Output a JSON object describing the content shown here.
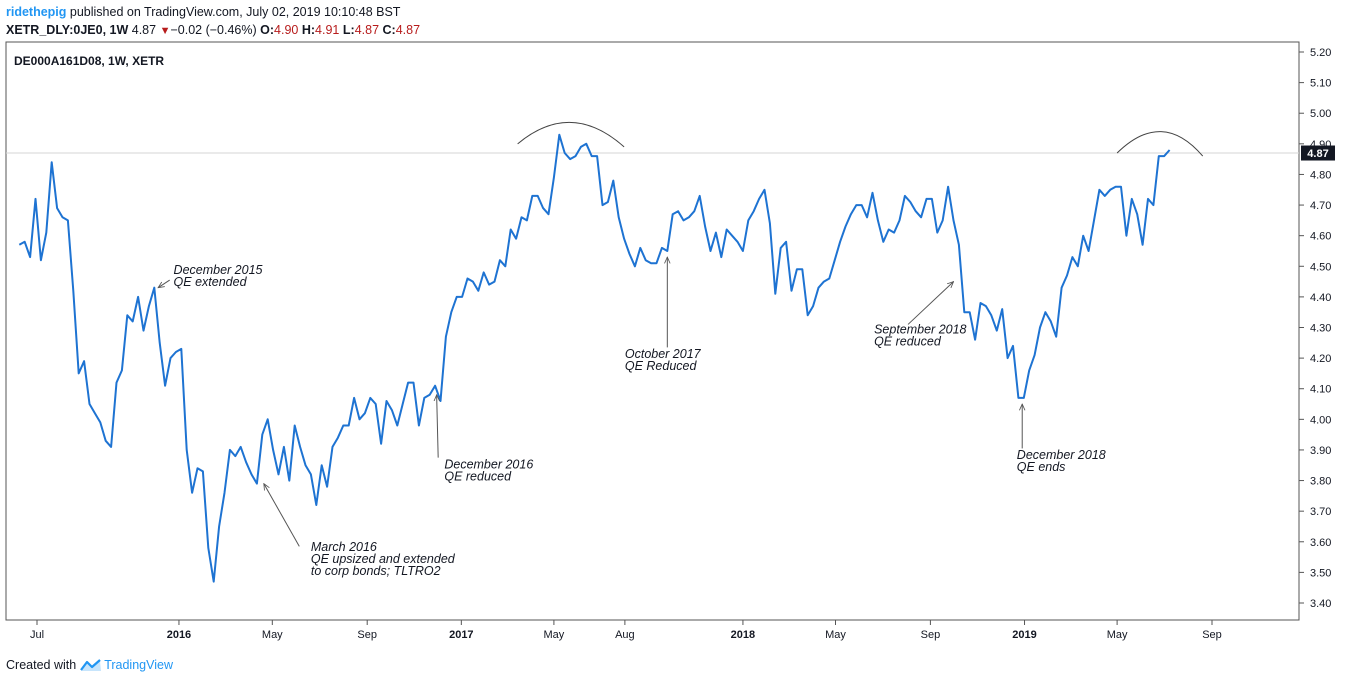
{
  "header": {
    "user": "ridethepig",
    "published_text": " published on TradingView.com, July 02, 2019 10:10:48 BST",
    "symbol": "XETR_DLY:0JE0, 1W",
    "last": "4.87",
    "change": "−0.02 (−0.46%)",
    "o_label": "O:",
    "o_value": "4.90",
    "h_label": "H:",
    "h_value": "4.91",
    "l_label": "L:",
    "l_value": "4.87",
    "c_label": "C:",
    "c_value": "4.87"
  },
  "footer": {
    "created_with": "Created with",
    "brand": "TradingView"
  },
  "chart_data": {
    "type": "line",
    "title": "DE000A161D08, 1W, XETR",
    "xlabel": "",
    "ylabel": "",
    "ylim": [
      3.35,
      5.23
    ],
    "y_ticks": [
      "5.20",
      "5.10",
      "5.00",
      "4.90",
      "4.80",
      "4.70",
      "4.60",
      "4.50",
      "4.40",
      "4.30",
      "4.20",
      "4.10",
      "4.00",
      "3.90",
      "3.80",
      "3.70",
      "3.60",
      "3.50",
      "3.40"
    ],
    "x_ticks": [
      {
        "label": "Jul",
        "date": "2015-07-01",
        "bold": false
      },
      {
        "label": "2016",
        "date": "2016-01-01",
        "bold": true
      },
      {
        "label": "May",
        "date": "2016-05-01",
        "bold": false
      },
      {
        "label": "Sep",
        "date": "2016-09-01",
        "bold": false
      },
      {
        "label": "2017",
        "date": "2017-01-01",
        "bold": true
      },
      {
        "label": "May",
        "date": "2017-05-01",
        "bold": false
      },
      {
        "label": "Aug",
        "date": "2017-08-01",
        "bold": false
      },
      {
        "label": "2018",
        "date": "2018-01-01",
        "bold": true
      },
      {
        "label": "May",
        "date": "2018-05-01",
        "bold": false
      },
      {
        "label": "Sep",
        "date": "2018-09-01",
        "bold": false
      },
      {
        "label": "2019",
        "date": "2019-01-01",
        "bold": true
      },
      {
        "label": "May",
        "date": "2019-05-01",
        "bold": false
      },
      {
        "label": "Sep",
        "date": "2019-09-01",
        "bold": false
      }
    ],
    "current_price": "4.87",
    "grid": false,
    "line_color": "#1e73d2",
    "series": [
      {
        "values": [
          [
            "2015-06-08",
            4.57
          ],
          [
            "2015-06-15",
            4.58
          ],
          [
            "2015-06-22",
            4.53
          ],
          [
            "2015-06-29",
            4.72
          ],
          [
            "2015-07-06",
            4.52
          ],
          [
            "2015-07-13",
            4.61
          ],
          [
            "2015-07-20",
            4.84
          ],
          [
            "2015-07-27",
            4.69
          ],
          [
            "2015-08-03",
            4.66
          ],
          [
            "2015-08-10",
            4.65
          ],
          [
            "2015-08-17",
            4.42
          ],
          [
            "2015-08-24",
            4.15
          ],
          [
            "2015-08-31",
            4.19
          ],
          [
            "2015-09-07",
            4.05
          ],
          [
            "2015-09-14",
            4.02
          ],
          [
            "2015-09-21",
            3.99
          ],
          [
            "2015-09-28",
            3.93
          ],
          [
            "2015-10-05",
            3.91
          ],
          [
            "2015-10-12",
            4.12
          ],
          [
            "2015-10-19",
            4.16
          ],
          [
            "2015-10-26",
            4.34
          ],
          [
            "2015-11-02",
            4.32
          ],
          [
            "2015-11-09",
            4.4
          ],
          [
            "2015-11-16",
            4.29
          ],
          [
            "2015-11-23",
            4.37
          ],
          [
            "2015-11-30",
            4.43
          ],
          [
            "2015-12-07",
            4.25
          ],
          [
            "2015-12-14",
            4.11
          ],
          [
            "2015-12-21",
            4.2
          ],
          [
            "2015-12-28",
            4.22
          ],
          [
            "2016-01-04",
            4.23
          ],
          [
            "2016-01-11",
            3.9
          ],
          [
            "2016-01-18",
            3.76
          ],
          [
            "2016-01-25",
            3.84
          ],
          [
            "2016-02-01",
            3.83
          ],
          [
            "2016-02-08",
            3.58
          ],
          [
            "2016-02-15",
            3.47
          ],
          [
            "2016-02-22",
            3.65
          ],
          [
            "2016-02-29",
            3.76
          ],
          [
            "2016-03-07",
            3.9
          ],
          [
            "2016-03-14",
            3.88
          ],
          [
            "2016-03-21",
            3.91
          ],
          [
            "2016-03-28",
            3.86
          ],
          [
            "2016-04-04",
            3.82
          ],
          [
            "2016-04-11",
            3.79
          ],
          [
            "2016-04-18",
            3.95
          ],
          [
            "2016-04-25",
            4.0
          ],
          [
            "2016-05-02",
            3.9
          ],
          [
            "2016-05-09",
            3.82
          ],
          [
            "2016-05-16",
            3.91
          ],
          [
            "2016-05-23",
            3.8
          ],
          [
            "2016-05-30",
            3.98
          ],
          [
            "2016-06-06",
            3.91
          ],
          [
            "2016-06-13",
            3.85
          ],
          [
            "2016-06-20",
            3.82
          ],
          [
            "2016-06-27",
            3.72
          ],
          [
            "2016-07-04",
            3.85
          ],
          [
            "2016-07-11",
            3.78
          ],
          [
            "2016-07-18",
            3.91
          ],
          [
            "2016-07-25",
            3.94
          ],
          [
            "2016-08-01",
            3.98
          ],
          [
            "2016-08-08",
            3.98
          ],
          [
            "2016-08-15",
            4.07
          ],
          [
            "2016-08-22",
            4.0
          ],
          [
            "2016-08-29",
            4.02
          ],
          [
            "2016-09-05",
            4.07
          ],
          [
            "2016-09-12",
            4.05
          ],
          [
            "2016-09-19",
            3.92
          ],
          [
            "2016-09-26",
            4.06
          ],
          [
            "2016-10-03",
            4.03
          ],
          [
            "2016-10-10",
            3.98
          ],
          [
            "2016-10-17",
            4.05
          ],
          [
            "2016-10-24",
            4.12
          ],
          [
            "2016-10-31",
            4.12
          ],
          [
            "2016-11-07",
            3.98
          ],
          [
            "2016-11-14",
            4.07
          ],
          [
            "2016-11-21",
            4.08
          ],
          [
            "2016-11-28",
            4.11
          ],
          [
            "2016-12-05",
            4.06
          ],
          [
            "2016-12-12",
            4.27
          ],
          [
            "2016-12-19",
            4.35
          ],
          [
            "2016-12-26",
            4.4
          ],
          [
            "2017-01-02",
            4.4
          ],
          [
            "2017-01-09",
            4.46
          ],
          [
            "2017-01-16",
            4.45
          ],
          [
            "2017-01-23",
            4.42
          ],
          [
            "2017-01-30",
            4.48
          ],
          [
            "2017-02-06",
            4.44
          ],
          [
            "2017-02-13",
            4.45
          ],
          [
            "2017-02-20",
            4.52
          ],
          [
            "2017-02-27",
            4.5
          ],
          [
            "2017-03-06",
            4.62
          ],
          [
            "2017-03-13",
            4.59
          ],
          [
            "2017-03-20",
            4.66
          ],
          [
            "2017-03-27",
            4.65
          ],
          [
            "2017-04-03",
            4.73
          ],
          [
            "2017-04-10",
            4.73
          ],
          [
            "2017-04-17",
            4.69
          ],
          [
            "2017-04-24",
            4.67
          ],
          [
            "2017-05-01",
            4.79
          ],
          [
            "2017-05-08",
            4.93
          ],
          [
            "2017-05-15",
            4.87
          ],
          [
            "2017-05-22",
            4.85
          ],
          [
            "2017-05-29",
            4.86
          ],
          [
            "2017-06-05",
            4.89
          ],
          [
            "2017-06-12",
            4.9
          ],
          [
            "2017-06-19",
            4.86
          ],
          [
            "2017-06-26",
            4.86
          ],
          [
            "2017-07-03",
            4.7
          ],
          [
            "2017-07-10",
            4.71
          ],
          [
            "2017-07-17",
            4.78
          ],
          [
            "2017-07-24",
            4.66
          ],
          [
            "2017-07-31",
            4.59
          ],
          [
            "2017-08-07",
            4.54
          ],
          [
            "2017-08-14",
            4.5
          ],
          [
            "2017-08-21",
            4.56
          ],
          [
            "2017-08-28",
            4.52
          ],
          [
            "2017-09-04",
            4.51
          ],
          [
            "2017-09-11",
            4.51
          ],
          [
            "2017-09-18",
            4.56
          ],
          [
            "2017-09-25",
            4.55
          ],
          [
            "2017-10-02",
            4.67
          ],
          [
            "2017-10-09",
            4.68
          ],
          [
            "2017-10-16",
            4.65
          ],
          [
            "2017-10-23",
            4.66
          ],
          [
            "2017-10-30",
            4.68
          ],
          [
            "2017-11-06",
            4.73
          ],
          [
            "2017-11-13",
            4.63
          ],
          [
            "2017-11-20",
            4.55
          ],
          [
            "2017-11-27",
            4.61
          ],
          [
            "2017-12-04",
            4.53
          ],
          [
            "2017-12-11",
            4.62
          ],
          [
            "2017-12-18",
            4.6
          ],
          [
            "2017-12-25",
            4.58
          ],
          [
            "2018-01-01",
            4.55
          ],
          [
            "2018-01-08",
            4.65
          ],
          [
            "2018-01-15",
            4.68
          ],
          [
            "2018-01-22",
            4.72
          ],
          [
            "2018-01-29",
            4.75
          ],
          [
            "2018-02-05",
            4.64
          ],
          [
            "2018-02-12",
            4.41
          ],
          [
            "2018-02-19",
            4.56
          ],
          [
            "2018-02-26",
            4.58
          ],
          [
            "2018-03-05",
            4.42
          ],
          [
            "2018-03-12",
            4.49
          ],
          [
            "2018-03-19",
            4.49
          ],
          [
            "2018-03-26",
            4.34
          ],
          [
            "2018-04-02",
            4.37
          ],
          [
            "2018-04-09",
            4.43
          ],
          [
            "2018-04-16",
            4.45
          ],
          [
            "2018-04-23",
            4.46
          ],
          [
            "2018-04-30",
            4.52
          ],
          [
            "2018-05-07",
            4.58
          ],
          [
            "2018-05-14",
            4.63
          ],
          [
            "2018-05-21",
            4.67
          ],
          [
            "2018-05-28",
            4.7
          ],
          [
            "2018-06-04",
            4.7
          ],
          [
            "2018-06-11",
            4.66
          ],
          [
            "2018-06-18",
            4.74
          ],
          [
            "2018-06-25",
            4.65
          ],
          [
            "2018-07-02",
            4.58
          ],
          [
            "2018-07-09",
            4.62
          ],
          [
            "2018-07-16",
            4.61
          ],
          [
            "2018-07-23",
            4.65
          ],
          [
            "2018-07-30",
            4.73
          ],
          [
            "2018-08-06",
            4.71
          ],
          [
            "2018-08-13",
            4.68
          ],
          [
            "2018-08-20",
            4.66
          ],
          [
            "2018-08-27",
            4.72
          ],
          [
            "2018-09-03",
            4.72
          ],
          [
            "2018-09-10",
            4.61
          ],
          [
            "2018-09-17",
            4.65
          ],
          [
            "2018-09-24",
            4.76
          ],
          [
            "2018-10-01",
            4.65
          ],
          [
            "2018-10-08",
            4.57
          ],
          [
            "2018-10-15",
            4.35
          ],
          [
            "2018-10-22",
            4.35
          ],
          [
            "2018-10-29",
            4.26
          ],
          [
            "2018-11-05",
            4.38
          ],
          [
            "2018-11-12",
            4.37
          ],
          [
            "2018-11-19",
            4.34
          ],
          [
            "2018-11-26",
            4.29
          ],
          [
            "2018-12-03",
            4.36
          ],
          [
            "2018-12-10",
            4.2
          ],
          [
            "2018-12-17",
            4.24
          ],
          [
            "2018-12-24",
            4.07
          ],
          [
            "2018-12-31",
            4.07
          ],
          [
            "2019-01-07",
            4.16
          ],
          [
            "2019-01-14",
            4.21
          ],
          [
            "2019-01-21",
            4.3
          ],
          [
            "2019-01-28",
            4.35
          ],
          [
            "2019-02-04",
            4.32
          ],
          [
            "2019-02-11",
            4.27
          ],
          [
            "2019-02-18",
            4.43
          ],
          [
            "2019-02-25",
            4.47
          ],
          [
            "2019-03-04",
            4.53
          ],
          [
            "2019-03-11",
            4.5
          ],
          [
            "2019-03-18",
            4.6
          ],
          [
            "2019-03-25",
            4.55
          ],
          [
            "2019-04-01",
            4.65
          ],
          [
            "2019-04-08",
            4.75
          ],
          [
            "2019-04-15",
            4.73
          ],
          [
            "2019-04-22",
            4.75
          ],
          [
            "2019-04-29",
            4.76
          ],
          [
            "2019-05-06",
            4.76
          ],
          [
            "2019-05-13",
            4.6
          ],
          [
            "2019-05-20",
            4.72
          ],
          [
            "2019-05-27",
            4.67
          ],
          [
            "2019-06-03",
            4.57
          ],
          [
            "2019-06-10",
            4.72
          ],
          [
            "2019-06-17",
            4.7
          ],
          [
            "2019-06-24",
            4.86
          ],
          [
            "2019-07-01",
            4.86
          ],
          [
            "2019-07-08",
            4.88
          ]
        ]
      }
    ],
    "annotations": [
      {
        "lines": [
          "December 2015",
          "QE extended"
        ],
        "date": "2015-12-25",
        "value": 4.475,
        "arrow_from": [
          "2015-12-20",
          4.455
        ],
        "arrow_to": [
          "2015-12-05",
          4.43
        ]
      },
      {
        "lines": [
          "March 2016",
          "QE upsized and extended",
          "to corp bonds; TLTRO2"
        ],
        "date": "2016-06-20",
        "value": 3.57,
        "arrow_from": [
          "2016-06-05",
          3.585
        ],
        "arrow_to": [
          "2016-04-20",
          3.79
        ]
      },
      {
        "lines": [
          "December 2016",
          "QE reduced"
        ],
        "date": "2016-12-10",
        "value": 3.84,
        "arrow_from": [
          "2016-12-02",
          3.875
        ],
        "arrow_to": [
          "2016-11-30",
          4.08
        ]
      },
      {
        "lines": [
          "October 2017",
          "QE Reduced"
        ],
        "date": "2017-08-01",
        "value": 4.2,
        "arrow_from": [
          "2017-09-25",
          4.235
        ],
        "arrow_to": [
          "2017-09-25",
          4.53
        ]
      },
      {
        "lines": [
          "September 2018",
          "QE reduced"
        ],
        "date": "2018-06-20",
        "value": 4.28,
        "arrow_from": [
          "2018-08-03",
          4.31
        ],
        "arrow_to": [
          "2018-10-01",
          4.45
        ]
      },
      {
        "lines": [
          "December 2018",
          "QE ends"
        ],
        "date": "2018-12-22",
        "value": 3.87,
        "arrow_from": [
          "2018-12-29",
          3.905
        ],
        "arrow_to": [
          "2018-12-29",
          4.05
        ]
      }
    ],
    "arcs": [
      {
        "from": [
          "2017-03-15",
          4.9
        ],
        "peak": [
          "2017-05-23",
          4.97
        ],
        "to": [
          "2017-07-31",
          4.89
        ]
      },
      {
        "from": [
          "2019-05-01",
          4.87
        ],
        "peak": [
          "2019-06-27",
          4.94
        ],
        "to": [
          "2019-08-20",
          4.86
        ]
      }
    ]
  }
}
